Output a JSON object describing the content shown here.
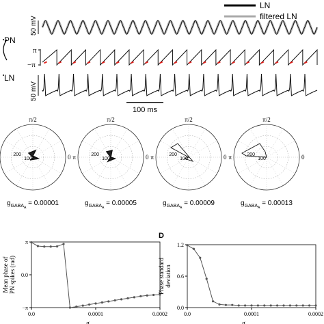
{
  "legend": {
    "ln": "LN",
    "filtered": "filtered LN"
  },
  "labels": {
    "pn": "PN",
    "ln_side": "LN",
    "panel_d": "D"
  },
  "scale": {
    "v1": "50 mV",
    "v2": "50 mV",
    "time": "100 ms"
  },
  "phase_ticks": {
    "pi": "π",
    "minus_pi": "−π"
  },
  "polar": {
    "top": "π/2",
    "right": "0",
    "left": "π",
    "radial_ticks": [
      "200",
      "100"
    ],
    "gaba_prefix": "g",
    "gaba_sub": "GABA",
    "gaba_subsub": "A",
    "gaba_values": [
      "= 0.00001",
      "= 0.00005",
      "= 0.00009",
      "= 0.00013"
    ]
  },
  "chart_data": [
    {
      "type": "line",
      "ylabel": "Mean phase of PN spikes (rad)",
      "xlabel": "g_GABA_A",
      "yticks": [
        "π",
        "0.0",
        "−π"
      ],
      "xticks": [
        "0.0",
        "0.0001",
        "0.0002"
      ],
      "xlim": [
        0,
        0.0002
      ],
      "ylim": [
        -3.1416,
        3.1416
      ],
      "x": [
        0,
        1e-05,
        2e-05,
        3e-05,
        4e-05,
        5e-05,
        6e-05,
        7e-05,
        8e-05,
        9e-05,
        0.0001,
        0.00011,
        0.00012,
        0.00013,
        0.00014,
        0.00015,
        0.00016,
        0.00017,
        0.00018,
        0.00019,
        0.0002
      ],
      "y": [
        3.1,
        2.75,
        2.7,
        2.7,
        2.72,
        2.95,
        -3.14,
        -3.05,
        -2.95,
        -2.85,
        -2.75,
        -2.65,
        -2.55,
        -2.45,
        -2.35,
        -2.25,
        -2.15,
        -2.05,
        -1.98,
        -1.93,
        -1.9
      ]
    },
    {
      "type": "line",
      "ylabel": "Phase standard deviation",
      "xlabel": "g_GABA_A",
      "yticks": [
        "1.2",
        "0.6",
        "0.0"
      ],
      "xticks": [
        "0.0",
        "0.0001",
        "0.0002"
      ],
      "xlim": [
        0,
        0.0002
      ],
      "ylim": [
        0,
        1.2
      ],
      "x": [
        0,
        1e-05,
        2e-05,
        3e-05,
        4e-05,
        5e-05,
        6e-05,
        7e-05,
        8e-05,
        9e-05,
        0.0001,
        0.00011,
        0.00012,
        0.00013,
        0.00014,
        0.00015,
        0.00016,
        0.00017,
        0.00018,
        0.00019,
        0.0002
      ],
      "y": [
        1.19,
        1.12,
        0.95,
        0.55,
        0.12,
        0.06,
        0.05,
        0.05,
        0.04,
        0.04,
        0.04,
        0.04,
        0.04,
        0.04,
        0.04,
        0.04,
        0.04,
        0.04,
        0.04,
        0.04,
        0.04
      ]
    }
  ]
}
